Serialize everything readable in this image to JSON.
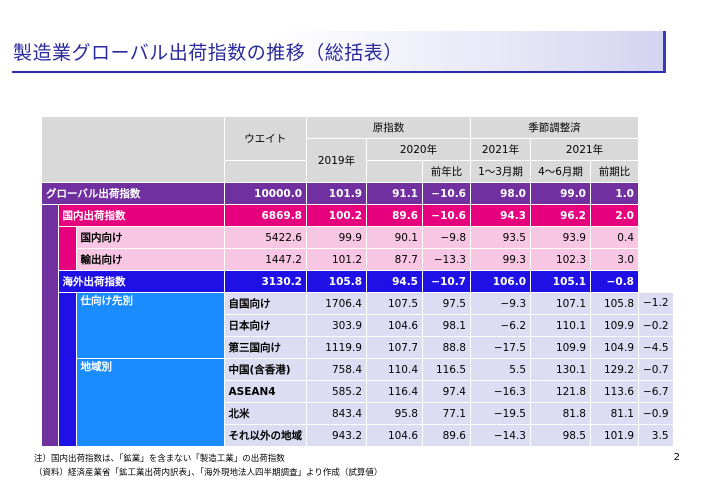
{
  "title": "製造業グローバル出荷指数の推移（総括表）",
  "header": {
    "weight": "ウエイト",
    "raw_index": "原指数",
    "seasonal": "季節調整済",
    "y2019": "2019年",
    "y2020": "2020年",
    "y2021a": "2021年",
    "y2021b": "2021年",
    "yoy": "前年比",
    "q1": "1～3月期",
    "q2": "4～6月期",
    "qoq": "前期比"
  },
  "rows": {
    "global": {
      "label": "グローバル出荷指数",
      "weight": "10000.0",
      "v2019": "101.9",
      "v2020": "91.1",
      "yoy": "−10.6",
      "q1": "98.0",
      "q2": "99.0",
      "qoq": "1.0"
    },
    "domestic": {
      "label": "国内出荷指数",
      "weight": "6869.8",
      "v2019": "100.2",
      "v2020": "89.6",
      "yoy": "−10.6",
      "q1": "94.3",
      "q2": "96.2",
      "qoq": "2.0"
    },
    "dom_dom": {
      "label": "国内向け",
      "weight": "5422.6",
      "v2019": "99.9",
      "v2020": "90.1",
      "yoy": "−9.8",
      "q1": "93.5",
      "q2": "93.9",
      "qoq": "0.4"
    },
    "dom_exp": {
      "label": "輸出向け",
      "weight": "1447.2",
      "v2019": "101.2",
      "v2020": "87.7",
      "yoy": "−13.3",
      "q1": "99.3",
      "q2": "102.3",
      "qoq": "3.0"
    },
    "overseas": {
      "label": "海外出荷指数",
      "weight": "3130.2",
      "v2019": "105.8",
      "v2020": "94.5",
      "yoy": "−10.7",
      "q1": "106.0",
      "q2": "105.1",
      "qoq": "−0.8"
    },
    "dest_group": "仕向け先別",
    "own": {
      "label": "自国向け",
      "weight": "1706.4",
      "v2019": "107.5",
      "v2020": "97.5",
      "yoy": "−9.3",
      "q1": "107.1",
      "q2": "105.8",
      "qoq": "−1.2"
    },
    "japan": {
      "label": "日本向け",
      "weight": "303.9",
      "v2019": "104.6",
      "v2020": "98.1",
      "yoy": "−6.2",
      "q1": "110.1",
      "q2": "109.9",
      "qoq": "−0.2"
    },
    "third": {
      "label": "第三国向け",
      "weight": "1119.9",
      "v2019": "107.7",
      "v2020": "88.8",
      "yoy": "−17.5",
      "q1": "109.9",
      "q2": "104.9",
      "qoq": "−4.5"
    },
    "region_group": "地域別",
    "china": {
      "label": "中国(含香港)",
      "weight": "758.4",
      "v2019": "110.4",
      "v2020": "116.5",
      "yoy": "5.5",
      "q1": "130.1",
      "q2": "129.2",
      "qoq": "−0.7"
    },
    "asean": {
      "label": "ASEAN4",
      "weight": "585.2",
      "v2019": "116.4",
      "v2020": "97.4",
      "yoy": "−16.3",
      "q1": "121.8",
      "q2": "113.6",
      "qoq": "−6.7"
    },
    "na": {
      "label": "北米",
      "weight": "843.4",
      "v2019": "95.8",
      "v2020": "77.1",
      "yoy": "−19.5",
      "q1": "81.8",
      "q2": "81.1",
      "qoq": "−0.9"
    },
    "other": {
      "label": "それ以外の地域",
      "weight": "943.2",
      "v2019": "104.6",
      "v2020": "89.6",
      "yoy": "−14.3",
      "q1": "98.5",
      "q2": "101.9",
      "qoq": "3.5"
    }
  },
  "notes": {
    "note1": "注）国内出荷指数は、「鉱業」を含まない「製造工業」の出荷指数",
    "note2": "（資料）経済産業省「鉱工業出荷内訳表」、「海外現地法人四半期調査」より作成（試算値）"
  },
  "page_number": "2"
}
